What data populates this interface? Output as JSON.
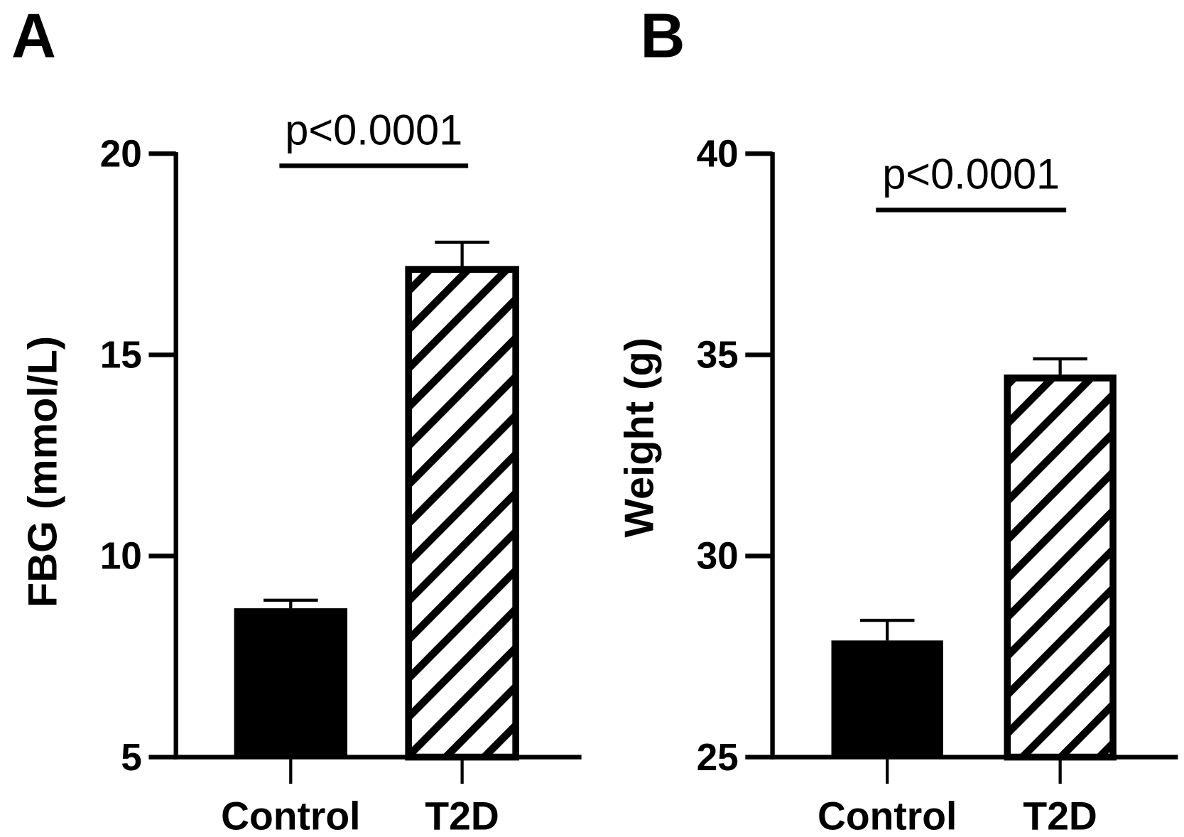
{
  "chart_data": [
    {
      "panel_label": "A",
      "type": "bar",
      "categories": [
        "Control",
        "T2D"
      ],
      "values": [
        8.7,
        17.2
      ],
      "error_upper": [
        8.9,
        17.8
      ],
      "fills": [
        "solid",
        "hatched"
      ],
      "ylabel": "FBG (mmol/L)",
      "xlabel": "",
      "ylim": [
        5,
        20
      ],
      "yticks": [
        "5",
        "10",
        "15",
        "20"
      ],
      "ytick_values": [
        5,
        10,
        15,
        20
      ],
      "annotation": "p<0.0001",
      "annotation_level": 19.7,
      "grid": false
    },
    {
      "panel_label": "B",
      "type": "bar",
      "categories": [
        "Control",
        "T2D"
      ],
      "values": [
        27.9,
        34.5
      ],
      "error_upper": [
        28.4,
        34.9
      ],
      "fills": [
        "solid",
        "hatched"
      ],
      "ylabel": "Weight (g)",
      "xlabel": "",
      "ylim": [
        25,
        40
      ],
      "yticks": [
        "25",
        "30",
        "35",
        "40"
      ],
      "ytick_values": [
        25,
        30,
        35,
        40
      ],
      "annotation": "p<0.0001",
      "annotation_level": 38.6,
      "grid": false
    }
  ],
  "colors": {
    "ink": "#000000",
    "background": "#ffffff"
  }
}
